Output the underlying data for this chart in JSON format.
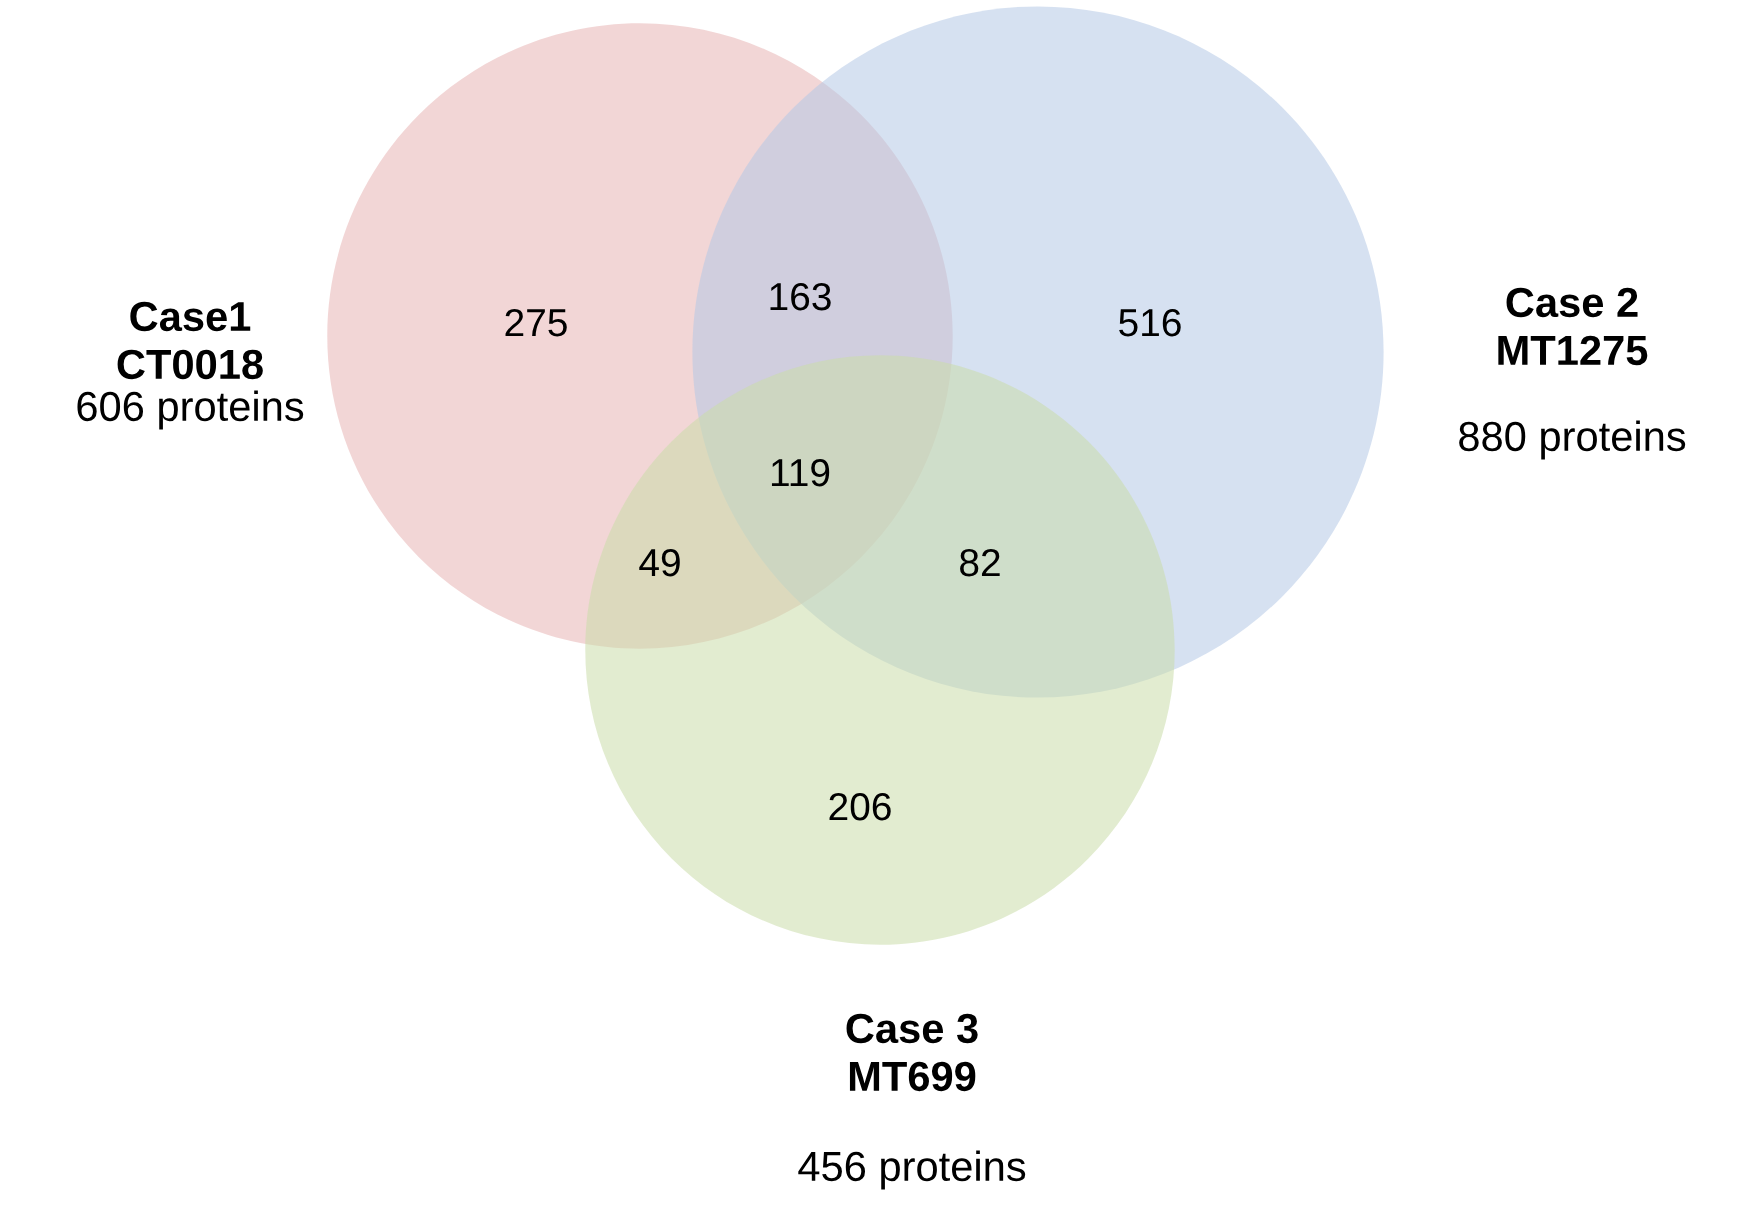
{
  "chart_data": {
    "type": "other",
    "categories": [
      "Case1\nCT0018",
      "Case 2\nMT1275",
      "Case 3\nMT699"
    ],
    "values": [
      606,
      880,
      456
    ],
    "value_labels": [
      "606 proteins",
      "880 proteins",
      "456 proteins"
    ],
    "colors": [
      "#e8b4b4",
      "#b4c8e6",
      "#cadcaa"
    ],
    "annotations": [
      "275",
      "163",
      "516",
      "119",
      "49",
      "82",
      "206"
    ]
  }
}
